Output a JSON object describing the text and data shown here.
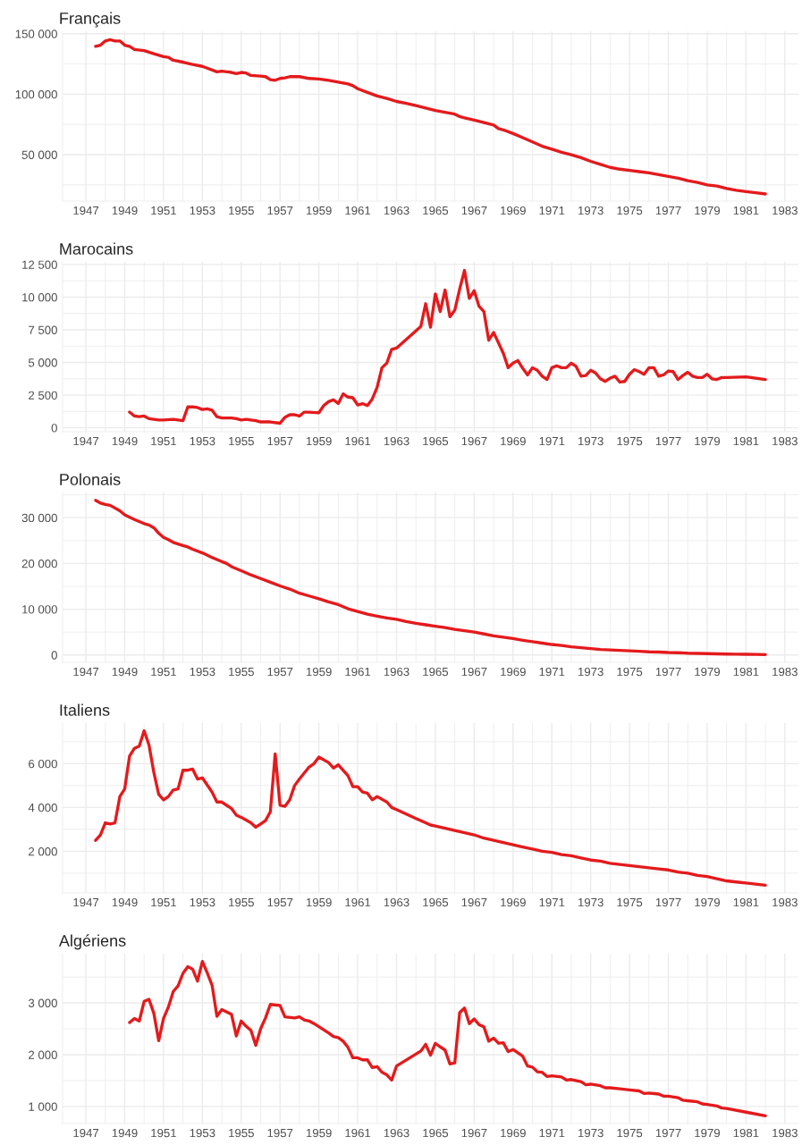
{
  "chart_data": [
    {
      "type": "line",
      "title": "Français",
      "x": [
        1947.5,
        1947.75,
        1948,
        1948.25,
        1948.5,
        1948.75,
        1949,
        1949.25,
        1949.5,
        1950,
        1950.5,
        1951,
        1951.25,
        1951.5,
        1952,
        1952.5,
        1953,
        1953.25,
        1953.75,
        1954,
        1954.5,
        1954.75,
        1955,
        1955.25,
        1955.5,
        1956,
        1956.25,
        1956.5,
        1956.75,
        1957,
        1957.25,
        1957.5,
        1958,
        1958.5,
        1959,
        1959.5,
        1960,
        1960.5,
        1960.75,
        1961,
        1961.5,
        1962,
        1962.5,
        1963,
        1963.5,
        1964,
        1964.5,
        1965,
        1965.5,
        1966,
        1966.25,
        1966.5,
        1967,
        1967.5,
        1968,
        1968.25,
        1968.5,
        1969,
        1969.5,
        1970,
        1970.5,
        1971,
        1971.5,
        1972,
        1972.5,
        1973,
        1973.5,
        1974,
        1974.5,
        1975,
        1975.5,
        1976,
        1976.5,
        1977,
        1977.5,
        1978,
        1978.5,
        1979,
        1979.5,
        1980,
        1980.5,
        1981,
        1981.5,
        1982
      ],
      "series": [
        {
          "color": "#e41a1c",
          "values": [
            139500,
            140500,
            144000,
            145000,
            144000,
            144000,
            140500,
            139500,
            137000,
            136000,
            133500,
            131000,
            130500,
            128000,
            126500,
            124500,
            123000,
            121500,
            118500,
            119000,
            118000,
            117000,
            118000,
            117500,
            115500,
            115000,
            114500,
            112000,
            111500,
            113000,
            113500,
            114500,
            114500,
            113000,
            112500,
            111500,
            110000,
            108500,
            107000,
            104500,
            101500,
            98500,
            96500,
            94000,
            92500,
            90500,
            88500,
            86500,
            85000,
            83500,
            81500,
            80500,
            78500,
            76500,
            74500,
            71500,
            70500,
            67500,
            64000,
            60500,
            57000,
            54500,
            52000,
            50000,
            47500,
            44500,
            42000,
            39500,
            38000,
            37000,
            36000,
            35000,
            33500,
            32000,
            30500,
            28500,
            27000,
            25000,
            24000,
            22000,
            20500,
            19500,
            18500,
            17500
          ]
        }
      ],
      "xlim": [
        1945.8,
        1983.7
      ],
      "xticks": [
        1947,
        {
          "value": 1948,
          "label": null
        },
        1949,
        {
          "value": 1950,
          "label": null
        },
        1951,
        {
          "value": 1952,
          "label": null
        },
        1953,
        {
          "value": 1954,
          "label": null
        },
        1955,
        {
          "value": 1956,
          "label": null
        },
        1957,
        {
          "value": 1958,
          "label": null
        },
        1959,
        {
          "value": 1960,
          "label": null
        },
        1961,
        {
          "value": 1962,
          "label": null
        },
        1963,
        {
          "value": 1964,
          "label": null
        },
        1965,
        {
          "value": 1966,
          "label": null
        },
        1967,
        {
          "value": 1968,
          "label": null
        },
        1969,
        {
          "value": 1970,
          "label": null
        },
        1971,
        {
          "value": 1972,
          "label": null
        },
        1973,
        {
          "value": 1974,
          "label": null
        },
        1975,
        {
          "value": 1976,
          "label": null
        },
        1977,
        {
          "value": 1978,
          "label": null
        },
        1979,
        {
          "value": 1980,
          "label": null
        },
        1981,
        {
          "value": 1982,
          "label": null
        },
        1983
      ],
      "ylim": [
        11600,
        152000
      ],
      "yticks": [
        {
          "value": 25000,
          "label": null
        },
        {
          "value": 50000,
          "label": "50 000"
        },
        {
          "value": 75000,
          "label": null
        },
        {
          "value": 100000,
          "label": "100 000"
        },
        {
          "value": 125000,
          "label": null
        },
        {
          "value": 150000,
          "label": "150 000"
        }
      ],
      "grid": true
    },
    {
      "type": "line",
      "title": "Marocains",
      "x": [
        1949.25,
        1949.5,
        1949.75,
        1950,
        1950.25,
        1950.75,
        1951,
        1951.5,
        1952,
        1952.25,
        1952.5,
        1952.75,
        1953,
        1953.25,
        1953.5,
        1953.75,
        1954,
        1954.5,
        1954.75,
        1955,
        1955.25,
        1955.5,
        1955.75,
        1956,
        1956.5,
        1957,
        1957.25,
        1957.5,
        1957.75,
        1958,
        1958.25,
        1958.5,
        1959,
        1959.25,
        1959.5,
        1959.75,
        1960,
        1960.25,
        1960.5,
        1960.75,
        1961,
        1961.25,
        1961.5,
        1961.75,
        1962,
        1962.25,
        1962.5,
        1962.75,
        1963,
        1964.25,
        1964.5,
        1964.75,
        1965,
        1965.25,
        1965.5,
        1965.75,
        1966,
        1966.25,
        1966.5,
        1966.75,
        1967,
        1967.25,
        1967.5,
        1967.75,
        1968,
        1968.5,
        1968.75,
        1969,
        1969.25,
        1969.5,
        1969.75,
        1970,
        1970.25,
        1970.5,
        1970.75,
        1971,
        1971.25,
        1971.5,
        1971.75,
        1972,
        1972.25,
        1972.5,
        1972.75,
        1973,
        1973.25,
        1973.5,
        1973.75,
        1974,
        1974.25,
        1974.5,
        1974.75,
        1975,
        1975.25,
        1975.5,
        1975.75,
        1976,
        1976.25,
        1976.5,
        1976.75,
        1977,
        1977.25,
        1977.5,
        1977.75,
        1978,
        1978.25,
        1978.5,
        1978.75,
        1979,
        1979.25,
        1979.5,
        1979.75,
        1980,
        1981,
        1982
      ],
      "series": [
        {
          "color": "#e41a1c",
          "values": [
            1200,
            900,
            850,
            900,
            700,
            600,
            600,
            650,
            550,
            1600,
            1600,
            1550,
            1400,
            1450,
            1350,
            850,
            750,
            750,
            700,
            600,
            650,
            600,
            550,
            450,
            450,
            350,
            800,
            1000,
            1000,
            900,
            1200,
            1200,
            1150,
            1700,
            2000,
            2150,
            1850,
            2600,
            2350,
            2300,
            1750,
            1850,
            1700,
            2200,
            3100,
            4600,
            4950,
            6000,
            6100,
            7750,
            9500,
            7700,
            10250,
            8900,
            10550,
            8500,
            9000,
            10600,
            12050,
            9900,
            10500,
            9300,
            8900,
            6700,
            7300,
            5700,
            4600,
            4950,
            5150,
            4550,
            4050,
            4600,
            4400,
            3950,
            3700,
            4600,
            4750,
            4600,
            4600,
            4950,
            4700,
            3950,
            4000,
            4400,
            4200,
            3750,
            3550,
            3800,
            3950,
            3500,
            3550,
            4100,
            4450,
            4300,
            4100,
            4600,
            4600,
            3950,
            4050,
            4350,
            4300,
            3700,
            4000,
            4250,
            3950,
            3850,
            3850,
            4100,
            3750,
            3700,
            3850,
            3850,
            3900,
            3700
          ]
        }
      ],
      "xlim": [
        1945.8,
        1983.7
      ],
      "xticks": [
        1947,
        {
          "value": 1948,
          "label": null
        },
        1949,
        {
          "value": 1950,
          "label": null
        },
        1951,
        {
          "value": 1952,
          "label": null
        },
        1953,
        {
          "value": 1954,
          "label": null
        },
        1955,
        {
          "value": 1956,
          "label": null
        },
        1957,
        {
          "value": 1958,
          "label": null
        },
        1959,
        {
          "value": 1960,
          "label": null
        },
        1961,
        {
          "value": 1962,
          "label": null
        },
        1963,
        {
          "value": 1964,
          "label": null
        },
        1965,
        {
          "value": 1966,
          "label": null
        },
        1967,
        {
          "value": 1968,
          "label": null
        },
        1969,
        {
          "value": 1970,
          "label": null
        },
        1971,
        {
          "value": 1972,
          "label": null
        },
        1973,
        {
          "value": 1974,
          "label": null
        },
        1975,
        {
          "value": 1976,
          "label": null
        },
        1977,
        {
          "value": 1978,
          "label": null
        },
        1979,
        {
          "value": 1980,
          "label": null
        },
        1981,
        {
          "value": 1982,
          "label": null
        },
        1983
      ],
      "ylim": [
        -300,
        12700
      ],
      "yticks": [
        0,
        {
          "value": 1250,
          "label": null
        },
        {
          "value": 2500,
          "label": "2 500"
        },
        {
          "value": 3750,
          "label": null
        },
        {
          "value": 5000,
          "label": "5 000"
        },
        {
          "value": 6250,
          "label": null
        },
        {
          "value": 7500,
          "label": "7 500"
        },
        {
          "value": 8750,
          "label": null
        },
        {
          "value": 10000,
          "label": "10 000"
        },
        {
          "value": 11250,
          "label": null
        },
        {
          "value": 12500,
          "label": "12 500"
        }
      ],
      "grid": true
    },
    {
      "type": "line",
      "title": "Polonais",
      "x": [
        1947.5,
        1947.75,
        1948,
        1948.25,
        1948.5,
        1948.75,
        1949,
        1949.5,
        1950,
        1950.25,
        1950.5,
        1950.75,
        1951,
        1951.25,
        1951.5,
        1952,
        1952.25,
        1952.5,
        1953,
        1953.5,
        1954,
        1954.25,
        1954.5,
        1955,
        1955.5,
        1956,
        1956.5,
        1957,
        1957.5,
        1958,
        1958.5,
        1959,
        1959.5,
        1960,
        1960.5,
        1961,
        1961.5,
        1962,
        1962.5,
        1963,
        1963.5,
        1964,
        1964.5,
        1965,
        1965.5,
        1966,
        1966.5,
        1967,
        1967.5,
        1968,
        1968.5,
        1969,
        1969.5,
        1970,
        1970.5,
        1971,
        1971.5,
        1972,
        1972.5,
        1973,
        1973.5,
        1974,
        1974.5,
        1975,
        1975.5,
        1976,
        1976.5,
        1977,
        1977.5,
        1978,
        1978.5,
        1979,
        1979.5,
        1980,
        1980.5,
        1981,
        1981.5,
        1982
      ],
      "series": [
        {
          "color": "#e41a1c",
          "values": [
            33800,
            33200,
            32900,
            32700,
            32100,
            31500,
            30600,
            29600,
            28700,
            28400,
            27800,
            26600,
            25700,
            25200,
            24600,
            23900,
            23600,
            23100,
            22300,
            21300,
            20400,
            20000,
            19300,
            18400,
            17500,
            16700,
            15900,
            15100,
            14400,
            13500,
            12900,
            12300,
            11600,
            11000,
            10100,
            9500,
            8900,
            8500,
            8100,
            7800,
            7300,
            6900,
            6600,
            6300,
            6000,
            5600,
            5300,
            5000,
            4600,
            4200,
            3900,
            3600,
            3200,
            2900,
            2600,
            2300,
            2100,
            1800,
            1600,
            1400,
            1200,
            1100,
            1000,
            900,
            800,
            700,
            650,
            550,
            500,
            400,
            350,
            300,
            250,
            200,
            180,
            150,
            130,
            100
          ]
        }
      ],
      "xlim": [
        1945.8,
        1983.7
      ],
      "xticks": [
        1947,
        {
          "value": 1948,
          "label": null
        },
        1949,
        {
          "value": 1950,
          "label": null
        },
        1951,
        {
          "value": 1952,
          "label": null
        },
        1953,
        {
          "value": 1954,
          "label": null
        },
        1955,
        {
          "value": 1956,
          "label": null
        },
        1957,
        {
          "value": 1958,
          "label": null
        },
        1959,
        {
          "value": 1960,
          "label": null
        },
        1961,
        {
          "value": 1962,
          "label": null
        },
        1963,
        {
          "value": 1964,
          "label": null
        },
        1965,
        {
          "value": 1966,
          "label": null
        },
        1967,
        {
          "value": 1968,
          "label": null
        },
        1969,
        {
          "value": 1970,
          "label": null
        },
        1971,
        {
          "value": 1972,
          "label": null
        },
        1973,
        {
          "value": 1974,
          "label": null
        },
        1975,
        {
          "value": 1976,
          "label": null
        },
        1977,
        {
          "value": 1978,
          "label": null
        },
        1979,
        {
          "value": 1980,
          "label": null
        },
        1981,
        {
          "value": 1982,
          "label": null
        },
        1983
      ],
      "ylim": [
        -1600,
        35500
      ],
      "yticks": [
        0,
        {
          "value": 5000,
          "label": null
        },
        {
          "value": 10000,
          "label": "10 000"
        },
        {
          "value": 15000,
          "label": null
        },
        {
          "value": 20000,
          "label": "20 000"
        },
        {
          "value": 25000,
          "label": null
        },
        {
          "value": 30000,
          "label": "30 000"
        },
        {
          "value": 35000,
          "label": null
        }
      ],
      "grid": true
    },
    {
      "type": "line",
      "title": "Italiens",
      "x": [
        1947.5,
        1947.75,
        1948,
        1948.25,
        1948.5,
        1948.75,
        1949,
        1949.25,
        1949.5,
        1949.75,
        1950,
        1950.25,
        1950.5,
        1950.75,
        1951,
        1951.25,
        1951.5,
        1951.75,
        1952,
        1952.25,
        1952.5,
        1952.75,
        1953,
        1953.5,
        1953.75,
        1954,
        1954.5,
        1954.75,
        1955,
        1955.5,
        1955.75,
        1956,
        1956.25,
        1956.5,
        1956.75,
        1957,
        1957.25,
        1957.5,
        1957.75,
        1958,
        1958.5,
        1958.75,
        1959,
        1959.5,
        1959.75,
        1960,
        1960.5,
        1960.75,
        1961,
        1961.25,
        1961.5,
        1961.75,
        1962,
        1962.5,
        1962.75,
        1963,
        1963.5,
        1964,
        1964.5,
        1964.75,
        1965,
        1965.5,
        1966,
        1966.5,
        1967,
        1967.5,
        1968,
        1968.5,
        1969,
        1969.5,
        1970,
        1970.5,
        1971,
        1971.5,
        1972,
        1972.5,
        1973,
        1973.5,
        1974,
        1974.5,
        1975,
        1975.5,
        1976,
        1976.5,
        1977,
        1977.5,
        1978,
        1978.5,
        1979,
        1979.5,
        1980,
        1980.5,
        1981,
        1981.5,
        1982
      ],
      "series": [
        {
          "color": "#e41a1c",
          "values": [
            2500,
            2750,
            3300,
            3250,
            3300,
            4500,
            4850,
            6350,
            6700,
            6800,
            7500,
            6850,
            5600,
            4600,
            4350,
            4500,
            4800,
            4850,
            5700,
            5700,
            5750,
            5300,
            5350,
            4700,
            4250,
            4250,
            3950,
            3650,
            3550,
            3300,
            3100,
            3250,
            3400,
            3800,
            6450,
            4100,
            4050,
            4350,
            5000,
            5300,
            5850,
            6000,
            6300,
            6050,
            5800,
            5950,
            5450,
            4950,
            4950,
            4700,
            4650,
            4350,
            4500,
            4250,
            4000,
            3900,
            3700,
            3500,
            3300,
            3200,
            3150,
            3050,
            2950,
            2850,
            2750,
            2600,
            2500,
            2400,
            2300,
            2200,
            2100,
            2000,
            1950,
            1850,
            1800,
            1700,
            1600,
            1550,
            1450,
            1400,
            1350,
            1300,
            1250,
            1200,
            1150,
            1050,
            1000,
            900,
            850,
            750,
            650,
            600,
            550,
            500,
            450
          ]
        }
      ],
      "xlim": [
        1945.8,
        1983.7
      ],
      "xticks": [
        1947,
        {
          "value": 1948,
          "label": null
        },
        1949,
        {
          "value": 1950,
          "label": null
        },
        1951,
        {
          "value": 1952,
          "label": null
        },
        1953,
        {
          "value": 1954,
          "label": null
        },
        1955,
        {
          "value": 1956,
          "label": null
        },
        1957,
        {
          "value": 1958,
          "label": null
        },
        1959,
        {
          "value": 1960,
          "label": null
        },
        1961,
        {
          "value": 1962,
          "label": null
        },
        1963,
        {
          "value": 1964,
          "label": null
        },
        1965,
        {
          "value": 1966,
          "label": null
        },
        1967,
        {
          "value": 1968,
          "label": null
        },
        1969,
        {
          "value": 1970,
          "label": null
        },
        1971,
        {
          "value": 1972,
          "label": null
        },
        1973,
        {
          "value": 1974,
          "label": null
        },
        1975,
        {
          "value": 1976,
          "label": null
        },
        1977,
        {
          "value": 1978,
          "label": null
        },
        1979,
        {
          "value": 1980,
          "label": null
        },
        1981,
        {
          "value": 1982,
          "label": null
        },
        1983
      ],
      "ylim": [
        100,
        7850
      ],
      "yticks": [
        {
          "value": 1000,
          "label": null
        },
        {
          "value": 2000,
          "label": "2 000"
        },
        {
          "value": 3000,
          "label": null
        },
        {
          "value": 4000,
          "label": "4 000"
        },
        {
          "value": 5000,
          "label": null
        },
        {
          "value": 6000,
          "label": "6 000"
        },
        {
          "value": 7000,
          "label": null
        }
      ],
      "grid": true
    },
    {
      "type": "line",
      "title": "Algériens",
      "x": [
        1949.25,
        1949.5,
        1949.75,
        1950,
        1950.25,
        1950.5,
        1950.75,
        1951,
        1951.25,
        1951.5,
        1951.75,
        1952,
        1952.25,
        1952.5,
        1952.75,
        1953,
        1953.25,
        1953.5,
        1953.75,
        1954,
        1954.5,
        1954.75,
        1955,
        1955.25,
        1955.5,
        1955.75,
        1956,
        1956.25,
        1956.5,
        1957,
        1957.25,
        1957.75,
        1958,
        1958.25,
        1958.5,
        1958.75,
        1959,
        1959.5,
        1959.75,
        1960,
        1960.25,
        1960.5,
        1960.75,
        1961,
        1961.25,
        1961.5,
        1961.75,
        1962,
        1962.25,
        1962.5,
        1962.75,
        1963,
        1964.25,
        1964.5,
        1964.75,
        1965,
        1965.25,
        1965.5,
        1965.75,
        1966,
        1966.25,
        1966.5,
        1966.75,
        1967,
        1967.25,
        1967.5,
        1967.75,
        1968,
        1968.25,
        1968.5,
        1968.75,
        1969,
        1969.5,
        1969.75,
        1970,
        1970.25,
        1970.5,
        1970.75,
        1971,
        1971.5,
        1971.75,
        1972,
        1972.5,
        1972.75,
        1973,
        1973.5,
        1973.75,
        1974,
        1974.5,
        1975,
        1975.5,
        1975.75,
        1976,
        1976.5,
        1976.75,
        1977,
        1977.5,
        1977.75,
        1978,
        1978.5,
        1978.75,
        1979,
        1979.5,
        1979.75,
        1980,
        1981,
        1982
      ],
      "series": [
        {
          "color": "#e41a1c",
          "values": [
            2620,
            2700,
            2650,
            3030,
            3070,
            2800,
            2270,
            2700,
            2920,
            3220,
            3330,
            3570,
            3700,
            3650,
            3420,
            3800,
            3580,
            3340,
            2740,
            2870,
            2780,
            2360,
            2650,
            2550,
            2470,
            2180,
            2500,
            2710,
            2970,
            2950,
            2730,
            2710,
            2730,
            2670,
            2650,
            2600,
            2540,
            2420,
            2350,
            2330,
            2260,
            2140,
            1940,
            1940,
            1900,
            1900,
            1750,
            1770,
            1660,
            1610,
            1510,
            1780,
            2070,
            2200,
            1990,
            2220,
            2150,
            2090,
            1820,
            1840,
            2810,
            2900,
            2600,
            2690,
            2580,
            2540,
            2260,
            2320,
            2220,
            2230,
            2060,
            2100,
            1970,
            1780,
            1760,
            1670,
            1660,
            1580,
            1590,
            1570,
            1510,
            1520,
            1480,
            1420,
            1430,
            1400,
            1360,
            1360,
            1340,
            1320,
            1300,
            1250,
            1260,
            1240,
            1200,
            1200,
            1170,
            1120,
            1110,
            1090,
            1050,
            1040,
            1010,
            970,
            960,
            890,
            820
          ]
        }
      ],
      "xlim": [
        1945.8,
        1983.7
      ],
      "xticks": [
        1947,
        {
          "value": 1948,
          "label": null
        },
        1949,
        {
          "value": 1950,
          "label": null
        },
        1951,
        {
          "value": 1952,
          "label": null
        },
        1953,
        {
          "value": 1954,
          "label": null
        },
        1955,
        {
          "value": 1956,
          "label": null
        },
        1957,
        {
          "value": 1958,
          "label": null
        },
        1959,
        {
          "value": 1960,
          "label": null
        },
        1961,
        {
          "value": 1962,
          "label": null
        },
        1963,
        {
          "value": 1964,
          "label": null
        },
        1965,
        {
          "value": 1966,
          "label": null
        },
        1967,
        {
          "value": 1968,
          "label": null
        },
        1969,
        {
          "value": 1970,
          "label": null
        },
        1971,
        {
          "value": 1972,
          "label": null
        },
        1973,
        {
          "value": 1974,
          "label": null
        },
        1975,
        {
          "value": 1976,
          "label": null
        },
        1977,
        {
          "value": 1978,
          "label": null
        },
        1979,
        {
          "value": 1980,
          "label": null
        },
        1981,
        {
          "value": 1982,
          "label": null
        },
        1983
      ],
      "ylim": [
        670,
        3950
      ],
      "yticks": [
        {
          "value": 1000,
          "label": "1 000"
        },
        {
          "value": 1500,
          "label": null
        },
        {
          "value": 2000,
          "label": "2 000"
        },
        {
          "value": 2500,
          "label": null
        },
        {
          "value": 3000,
          "label": "3 000"
        },
        {
          "value": 3500,
          "label": null
        }
      ],
      "grid": true
    }
  ]
}
